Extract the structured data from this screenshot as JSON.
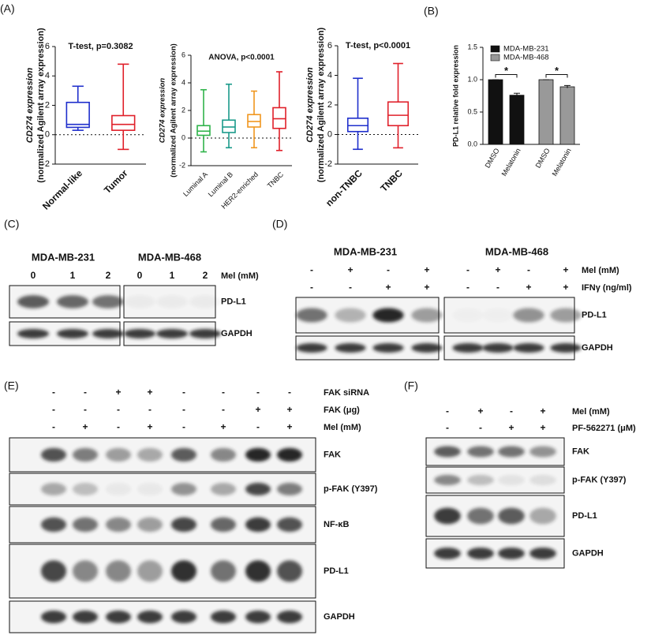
{
  "chart_data": [
    {
      "type": "box",
      "panel": "(A)",
      "title": "T-test, p=0.3082",
      "ylabel": [
        "CD274 expression",
        "(normalized Agilent array expression)"
      ],
      "categories": [
        "Normal-like",
        "Tumor"
      ],
      "boxes": [
        {
          "min": 0.3,
          "q1": 0.5,
          "median": 0.7,
          "q3": 2.2,
          "max": 3.3,
          "color": "#1f2fcc"
        },
        {
          "min": -1,
          "q1": 0.3,
          "median": 0.7,
          "q3": 1.3,
          "max": 4.8,
          "color": "#e0202a"
        }
      ],
      "ylim": [
        -2,
        6
      ],
      "yticks": [
        -2,
        0,
        2,
        4,
        6
      ],
      "reference_line": 0
    },
    {
      "type": "box",
      "title": "ANOVA, p<0.0001",
      "ylabel": [
        "CD274 expression",
        "(normalized Agilent array expression)"
      ],
      "categories": [
        "Luminal A",
        "Luminal B",
        "HER2-enriched",
        "TNBC"
      ],
      "boxes": [
        {
          "min": -1,
          "q1": 0.2,
          "median": 0.5,
          "q3": 0.9,
          "max": 3.5,
          "color": "#2fb34a"
        },
        {
          "min": -0.7,
          "q1": 0.4,
          "median": 0.8,
          "q3": 1.3,
          "max": 3.9,
          "color": "#1a9a8a"
        },
        {
          "min": -0.7,
          "q1": 0.8,
          "median": 1.2,
          "q3": 1.7,
          "max": 3.4,
          "color": "#f0961e"
        },
        {
          "min": -0.9,
          "q1": 0.7,
          "median": 1.4,
          "q3": 2.2,
          "max": 4.8,
          "color": "#e0202a"
        }
      ],
      "ylim": [
        -2,
        6
      ],
      "yticks": [
        -2,
        0,
        2,
        4,
        6
      ],
      "reference_line": 0
    },
    {
      "type": "box",
      "title": "T-test, p<0.0001",
      "ylabel": [
        "CD274 expression",
        "(normalized Agilent array expression)"
      ],
      "categories": [
        "non-TNBC",
        "TNBC"
      ],
      "boxes": [
        {
          "min": -1,
          "q1": 0.2,
          "median": 0.6,
          "q3": 1.1,
          "max": 3.8,
          "color": "#1f2fcc"
        },
        {
          "min": -0.9,
          "q1": 0.6,
          "median": 1.3,
          "q3": 2.2,
          "max": 4.8,
          "color": "#e0202a"
        }
      ],
      "ylim": [
        -2,
        6
      ],
      "yticks": [
        -2,
        0,
        2,
        4,
        6
      ],
      "reference_line": 0
    },
    {
      "type": "bar",
      "panel": "(B)",
      "ylabel": "PD-L1 relative fold expression",
      "categories": [
        "DMSO",
        "Melatonin"
      ],
      "series": [
        {
          "name": "MDA-MB-231",
          "color": "#111111",
          "values": [
            1,
            0.76
          ],
          "errors": [
            0,
            0.03
          ]
        },
        {
          "name": "MDA-MB-468",
          "color": "#999999",
          "values": [
            1,
            0.89
          ],
          "errors": [
            0,
            0.02
          ]
        }
      ],
      "annotations": [
        "*",
        "*"
      ],
      "ylim": [
        0,
        1.5
      ],
      "yticks": [
        {
          "value": 0,
          "label": "0.0"
        },
        0.5,
        {
          "value": 1,
          "label": "1.0"
        },
        1.5
      ],
      "legend": "upper left"
    }
  ],
  "blots": {
    "C": {
      "panel": "(C)",
      "cell_lines": [
        "MDA-MB-231",
        "MDA-MB-468"
      ],
      "conditions": [
        {
          "name": "Mel (mM)",
          "lanes": [
            0,
            1,
            2,
            0,
            1,
            2
          ]
        }
      ],
      "bands": [
        "PD-L1",
        "GAPDH"
      ]
    },
    "D": {
      "panel": "(D)",
      "cell_lines": [
        "MDA-MB-231",
        "MDA-MB-468"
      ],
      "conditions": [
        {
          "name": "Mel (mM)",
          "lanes": [
            "-",
            "+",
            "-",
            "+",
            "-",
            "+",
            "-",
            "+"
          ]
        },
        {
          "name": "IFNγ (ng/ml)",
          "lanes": [
            "-",
            "-",
            "+",
            "+",
            "-",
            "-",
            "+",
            "+"
          ]
        }
      ],
      "bands": [
        "PD-L1",
        "GAPDH"
      ]
    },
    "E": {
      "panel": "(E)",
      "cell_lines": [],
      "conditions": [
        {
          "name": "FAK siRNA",
          "lanes": [
            "-",
            "-",
            "+",
            "+",
            "-",
            "-",
            "-",
            "-"
          ]
        },
        {
          "name": "FAK (μg)",
          "lanes": [
            "-",
            "-",
            "-",
            "-",
            "-",
            "-",
            "+",
            "+"
          ]
        },
        {
          "name": "Mel (mM)",
          "lanes": [
            "-",
            "+",
            "-",
            "+",
            "-",
            "+",
            "-",
            "+"
          ]
        }
      ],
      "bands": [
        "FAK",
        "p-FAK (Y397)",
        "NF-κB",
        "PD-L1",
        "GAPDH"
      ]
    },
    "F": {
      "panel": "(F)",
      "cell_lines": [],
      "conditions": [
        {
          "name": "Mel (mM)",
          "lanes": [
            "-",
            "+",
            "-",
            "+"
          ]
        },
        {
          "name": "PF-562271 (μM)",
          "lanes": [
            "-",
            "-",
            "+",
            "+"
          ]
        }
      ],
      "bands": [
        "FAK",
        "p-FAK (Y397)",
        "PD-L1",
        "GAPDH"
      ]
    }
  }
}
